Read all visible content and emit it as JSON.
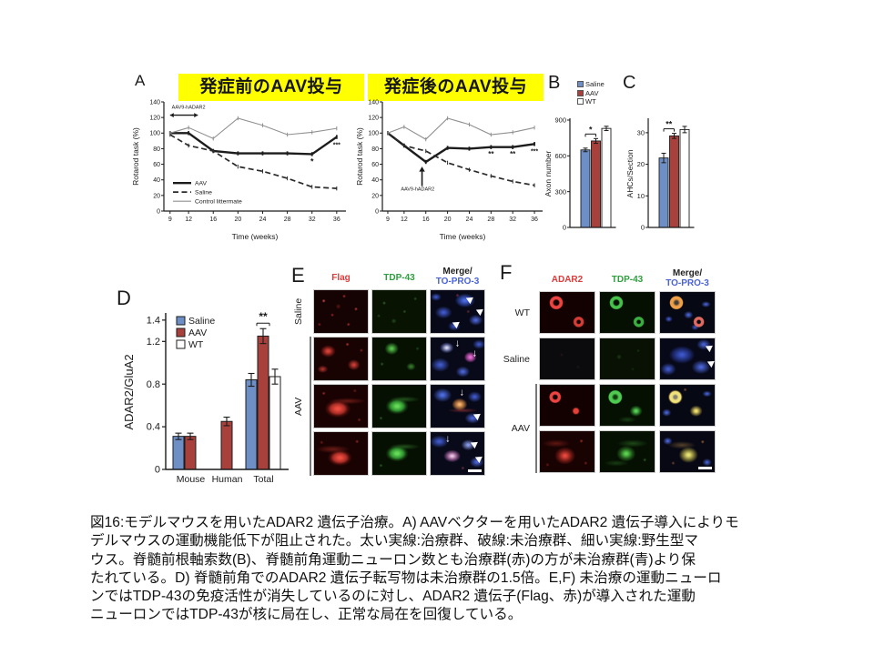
{
  "figure": {
    "labels": {
      "a": "A",
      "b": "B",
      "c": "C",
      "d": "D",
      "e": "E",
      "f": "F"
    },
    "panel_a": {
      "title_pre": "発症前のAAV投与",
      "title_post": "発症後のAAV投与"
    }
  },
  "palette": {
    "bar_blue": "#6d8fc6",
    "bar_red": "#a8413c",
    "white": "#ffffff",
    "yellow": "#ffff00",
    "header_red": "#e03a3a",
    "header_green": "#2f9e3f",
    "header_blue": "#4a63d8"
  },
  "legend_bc": {
    "items": [
      {
        "label": "Saline",
        "color": "bar_blue"
      },
      {
        "label": "AAV",
        "color": "bar_red"
      },
      {
        "label": "WT",
        "color": "white"
      }
    ]
  },
  "chart_data": [
    {
      "id": "chart-a-pre",
      "type": "line",
      "title": "発症前のAAV投与",
      "xlabel": "Time (weeks)",
      "ylabel": "Rotarod task (%)",
      "x": [
        9,
        12,
        16,
        20,
        24,
        28,
        32,
        36
      ],
      "xlim": [
        8,
        37.5
      ],
      "ylim": [
        0,
        140
      ],
      "yticks": [
        0,
        20,
        40,
        60,
        80,
        100,
        120,
        140
      ],
      "series": [
        {
          "name": "AAV",
          "style": "solid-thick",
          "values": [
            100,
            100,
            77,
            74,
            74,
            74,
            73,
            95
          ]
        },
        {
          "name": "Saline",
          "style": "dashed",
          "values": [
            98,
            84,
            77,
            57,
            51,
            42,
            31,
            29
          ]
        },
        {
          "name": "Control littermate",
          "style": "thin",
          "values": [
            100,
            107,
            93,
            119,
            110,
            98,
            101,
            106
          ]
        }
      ],
      "legend": {
        "y": 36
      },
      "annotations": [
        {
          "text": "AAV9-hADAR2",
          "x": 12,
          "y": 131,
          "size": 5.5
        },
        {
          "text": "*",
          "x": 32,
          "y": 60,
          "size": 9
        },
        {
          "text": "***",
          "x": 36,
          "y": 82,
          "size": 7
        }
      ],
      "arrow_h": {
        "x1": 9,
        "x2": 13.5,
        "y": 123
      }
    },
    {
      "id": "chart-a-post",
      "type": "line",
      "title": "発症後のAAV投与",
      "xlabel": "Time (weeks)",
      "ylabel": "Rotarod task (%)",
      "x": [
        9,
        12,
        16,
        20,
        24,
        28,
        32,
        36
      ],
      "xlim": [
        8,
        37.5
      ],
      "ylim": [
        0,
        140
      ],
      "yticks": [
        0,
        20,
        40,
        60,
        80,
        100,
        120,
        140
      ],
      "series": [
        {
          "name": "AAV",
          "style": "solid-thick",
          "values": [
            100,
            84,
            63,
            81,
            80,
            82,
            82,
            86
          ]
        },
        {
          "name": "Saline",
          "style": "dashed",
          "values": [
            100,
            84,
            77,
            62,
            53,
            45,
            38,
            33
          ]
        },
        {
          "name": "Control littermate",
          "style": "thin",
          "values": [
            100,
            108,
            92,
            119,
            111,
            98,
            101,
            107
          ]
        }
      ],
      "annotations": [
        {
          "text": "AAV9-hADAR2",
          "x": 14.5,
          "y": 26,
          "size": 5.5
        },
        {
          "text": "**",
          "x": 28,
          "y": 70,
          "size": 8
        },
        {
          "text": "**",
          "x": 32,
          "y": 70,
          "size": 8
        },
        {
          "text": "***",
          "x": 36,
          "y": 74,
          "size": 7
        }
      ],
      "arrow_v": {
        "x": 15.3,
        "y_from": 32,
        "y_to": 57
      }
    },
    {
      "id": "chart-b",
      "type": "bar",
      "categories": [
        "Saline",
        "AAV",
        "WT"
      ],
      "values": [
        650,
        725,
        830
      ],
      "errors": [
        15,
        20,
        18
      ],
      "colors": [
        "blue",
        "red",
        "white"
      ],
      "ylabel": "Axon number",
      "ylim": [
        0,
        900
      ],
      "yticks": [
        0,
        300,
        600,
        900
      ],
      "sig": {
        "label": "*",
        "from": 0,
        "to": 1
      }
    },
    {
      "id": "chart-c",
      "type": "bar",
      "categories": [
        "Saline",
        "AAV",
        "WT"
      ],
      "values": [
        22,
        29,
        31
      ],
      "errors": [
        1.5,
        0.8,
        1.0
      ],
      "colors": [
        "blue",
        "red",
        "white"
      ],
      "ylabel": "AHCs/Section",
      "ylim": [
        0,
        34
      ],
      "yticks": [
        0,
        10,
        20,
        30
      ],
      "sig": {
        "label": "**",
        "from": 0,
        "to": 1
      }
    },
    {
      "id": "chart-d",
      "type": "bar-grouped",
      "categories": [
        "Mouse",
        "Human",
        "Total"
      ],
      "ylabel": "ADAR2/GluA2",
      "ylim": [
        0,
        1.45
      ],
      "yticks": [
        0,
        0.4,
        0.8,
        1.2,
        1.4
      ],
      "series": [
        {
          "name": "Saline",
          "color": "blue",
          "values": [
            0.31,
            null,
            0.84
          ],
          "errors": [
            0.03,
            null,
            0.06
          ]
        },
        {
          "name": "AAV",
          "color": "red",
          "values": [
            0.31,
            0.45,
            1.25
          ],
          "errors": [
            0.03,
            0.04,
            0.07
          ]
        },
        {
          "name": "WT",
          "color": "white",
          "values": [
            null,
            null,
            0.87
          ],
          "errors": [
            null,
            null,
            0.07
          ]
        }
      ],
      "sig": {
        "label": "**",
        "group": 2,
        "bar": 1
      }
    }
  ],
  "panel_e": {
    "columns": [
      {
        "label": "Flag",
        "color": "#e03a3a"
      },
      {
        "label": "TDP-43",
        "color": "#2f9e3f"
      },
      {
        "label": "Merge/",
        "label2": "TO-PRO-3",
        "color": "#222222",
        "color2": "#4a63d8"
      }
    ],
    "row_groups": [
      {
        "label": "Saline",
        "rows": 1
      },
      {
        "label": "AAV",
        "rows": 3,
        "bracket": true
      }
    ],
    "rows": [
      {
        "cells": [
          {
            "t": "rs"
          },
          {
            "t": "gs"
          },
          {
            "t": "mb",
            "m": [
              "ah:72:22",
              "ah:90:48",
              "ah:46:78"
            ]
          }
        ]
      },
      {
        "cells": [
          {
            "t": "rb"
          },
          {
            "t": "gc"
          },
          {
            "t": "mp",
            "m": [
              "ar:50:14",
              "ar:82:38"
            ]
          }
        ]
      },
      {
        "cells": [
          {
            "t": "rn"
          },
          {
            "t": "gn"
          },
          {
            "t": "mo",
            "m": [
              "ar:58:20",
              "ah:84:72"
            ]
          }
        ]
      },
      {
        "cells": [
          {
            "t": "rn2"
          },
          {
            "t": "gn"
          },
          {
            "t": "mp2",
            "m": [
              "ar:32:18",
              "ah:80:28",
              "ah:88:62"
            ],
            "sb": true
          }
        ]
      }
    ]
  },
  "panel_f": {
    "columns": [
      {
        "label": "ADAR2",
        "color": "#e03a3a"
      },
      {
        "label": "TDP-43",
        "color": "#2f9e3f"
      },
      {
        "label": "Merge/",
        "label2": "TO-PRO-3",
        "color": "#222222",
        "color2": "#4a63d8"
      }
    ],
    "row_groups": [
      {
        "label": "WT",
        "rows": 1
      },
      {
        "label": "Saline",
        "rows": 1
      },
      {
        "label": "AAV",
        "rows": 2,
        "bracket": true
      }
    ],
    "rows": [
      {
        "cells": [
          {
            "t": "rr"
          },
          {
            "t": "gr"
          },
          {
            "t": "mr"
          }
        ]
      },
      {
        "cells": [
          {
            "t": "dk"
          },
          {
            "t": "gvd"
          },
          {
            "t": "mb2",
            "m": [
              "ah:88:22",
              "ah:91:60"
            ]
          }
        ]
      },
      {
        "cells": [
          {
            "t": "rr2"
          },
          {
            "t": "gc2"
          },
          {
            "t": "mr2"
          }
        ]
      },
      {
        "cells": [
          {
            "t": "rd"
          },
          {
            "t": "gd"
          },
          {
            "t": "my",
            "sb": true
          }
        ]
      }
    ]
  },
  "caption": {
    "lines": [
      "図16:モデルマウスを用いたADAR2 遺伝子治療。A) AAVベクターを用いたADAR2 遺伝子導入によりモ",
      "デルマウスの運動機能低下が阻止された。太い実線:治療群、破線:未治療群、細い実線:野生型マ",
      "ウス。脊髄前根軸索数(B)、脊髄前角運動ニューロン数とも治療群(赤)の方が未治療群(青)より保",
      "たれている。D) 脊髄前角でのADAR2 遺伝子転写物は未治療群の1.5倍。E,F) 未治療の運動ニューロ",
      "ンではTDP-43の免疫活性が消失しているのに対し、ADAR2 遺伝子(Flag、赤)が導入された運動",
      "ニューロンではTDP-43が核に局在し、正常な局在を回復している。"
    ]
  }
}
